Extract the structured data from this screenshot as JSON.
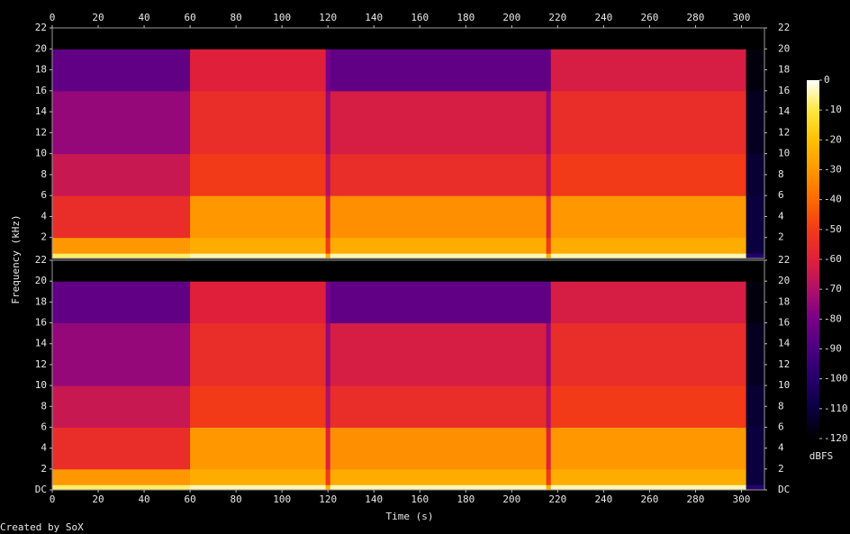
{
  "chart_data": {
    "type": "spectrogram",
    "xlabel": "Time (s)",
    "ylabel": "Frequency (kHz)",
    "credit": "Created by SoX",
    "xlim": [
      0,
      310
    ],
    "xticks": [
      0,
      20,
      40,
      60,
      80,
      100,
      120,
      140,
      160,
      180,
      200,
      220,
      240,
      260,
      280,
      300
    ],
    "time_edges": [
      0,
      60,
      119,
      121,
      215,
      217,
      302,
      310
    ],
    "freq_edges": [
      0,
      0.5,
      2,
      6,
      10,
      16,
      20,
      22
    ],
    "colorscale": [
      "#000000",
      "#0a0040",
      "#25006a",
      "#4a0080",
      "#780088",
      "#b0106a",
      "#e0203a",
      "#f23a18",
      "#fc6a00",
      "#ff9800",
      "#ffc000",
      "#ffe840",
      "#ffffff"
    ],
    "clim": [
      -120,
      0
    ],
    "cticks": [
      0,
      -10,
      -20,
      -30,
      -40,
      -50,
      -60,
      -70,
      -80,
      -90,
      -100,
      -110,
      -120
    ],
    "clabel": "dBFS",
    "channels": [
      {
        "ylim": [
          0,
          22
        ],
        "yticks": [
          2,
          4,
          6,
          8,
          10,
          12,
          14,
          16,
          18,
          20,
          22
        ],
        "values": [
          [
            -8,
            -4,
            -25,
            -4,
            -25,
            -4,
            -100
          ],
          [
            -30,
            -25,
            -50,
            -25,
            -50,
            -25,
            -110
          ],
          [
            -55,
            -30,
            -60,
            -32,
            -60,
            -30,
            -110
          ],
          [
            -65,
            -50,
            -70,
            -55,
            -70,
            -50,
            -112
          ],
          [
            -75,
            -55,
            -75,
            -62,
            -75,
            -55,
            -115
          ],
          [
            -85,
            -60,
            -80,
            -85,
            -85,
            -62,
            -118
          ],
          [
            -120,
            -120,
            -120,
            -120,
            -120,
            -120,
            -120
          ]
        ]
      },
      {
        "ylim": [
          0,
          22
        ],
        "yticks": [
          {
            "value": 0,
            "label": "DC"
          },
          2,
          4,
          6,
          8,
          10,
          12,
          14,
          16,
          18,
          20,
          22
        ],
        "values": [
          [
            -8,
            -4,
            -25,
            -4,
            -25,
            -4,
            -100
          ],
          [
            -30,
            -25,
            -50,
            -25,
            -50,
            -25,
            -110
          ],
          [
            -55,
            -30,
            -60,
            -32,
            -60,
            -30,
            -110
          ],
          [
            -65,
            -50,
            -70,
            -55,
            -70,
            -50,
            -112
          ],
          [
            -75,
            -55,
            -75,
            -62,
            -75,
            -55,
            -115
          ],
          [
            -85,
            -60,
            -80,
            -85,
            -85,
            -62,
            -118
          ],
          [
            -120,
            -120,
            -120,
            -120,
            -120,
            -120,
            -120
          ]
        ]
      }
    ]
  }
}
